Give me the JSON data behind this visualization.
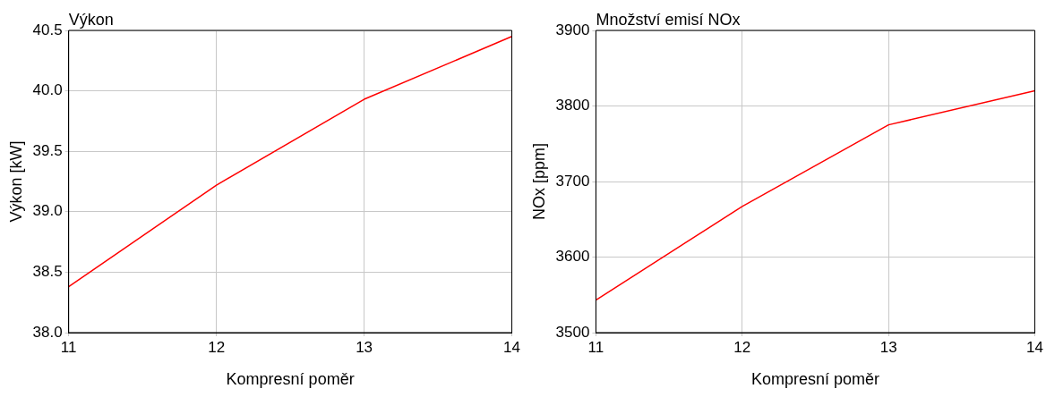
{
  "chart_data": [
    {
      "type": "line",
      "title": "Výkon",
      "xlabel": "Kompresní poměr",
      "ylabel": "Výkon [kW]",
      "x": [
        11,
        12,
        13,
        14
      ],
      "series": [
        {
          "color": "#ff0000",
          "values": [
            38.38,
            39.22,
            39.93,
            40.45
          ]
        }
      ],
      "xlim": [
        11,
        14
      ],
      "xticks": [
        11,
        12,
        13,
        14
      ],
      "ylim": [
        38.0,
        40.5
      ],
      "yticks": [
        {
          "value": 38,
          "label": "38.0"
        },
        {
          "value": 38.5,
          "label": "38.5"
        },
        {
          "value": 39,
          "label": "39.0"
        },
        {
          "value": 39.5,
          "label": "39.5"
        },
        {
          "value": 40,
          "label": "40.0"
        },
        {
          "value": 40.5,
          "label": "40.5"
        }
      ],
      "grid": true,
      "legend": false,
      "marker": "none",
      "line_style": "solid"
    },
    {
      "type": "line",
      "title": "Množství emisí NOx",
      "xlabel": "Kompresní poměr",
      "ylabel": "NOx [ppm]",
      "x": [
        11,
        12,
        13,
        14
      ],
      "series": [
        {
          "color": "#ff0000",
          "values": [
            3543,
            3667,
            3775,
            3820
          ]
        }
      ],
      "xlim": [
        11,
        14
      ],
      "xticks": [
        11,
        12,
        13,
        14
      ],
      "ylim": [
        3500,
        3900
      ],
      "yticks": [
        3500,
        3600,
        3700,
        3800,
        3900
      ],
      "grid": true,
      "legend": false,
      "marker": "none",
      "line_style": "solid"
    }
  ]
}
